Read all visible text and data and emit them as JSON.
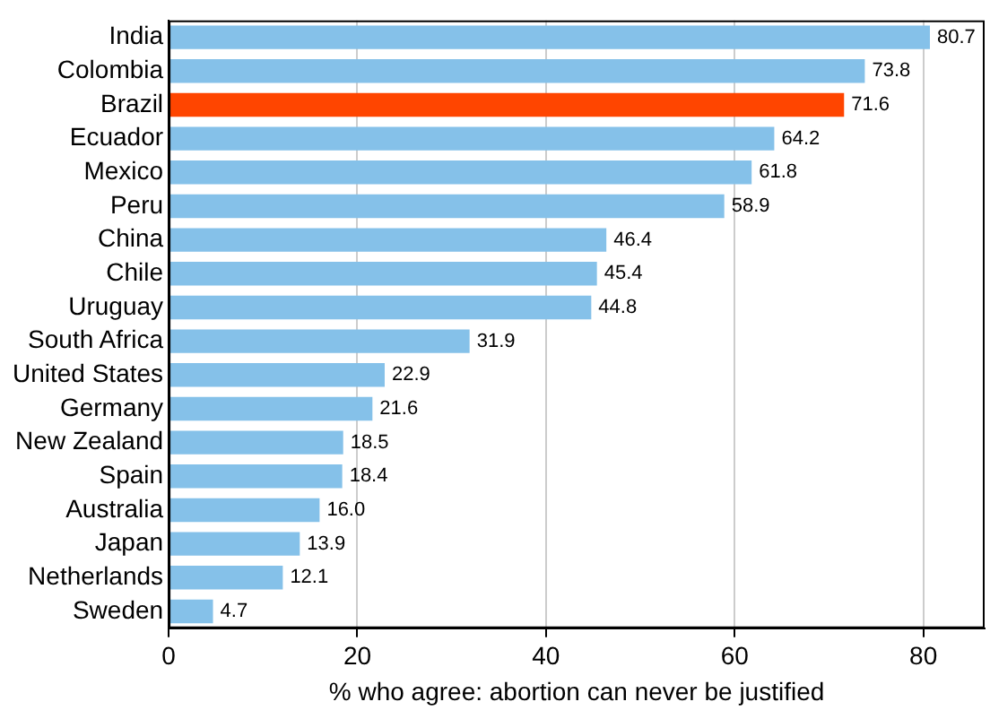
{
  "chart_data": {
    "type": "bar",
    "orientation": "horizontal",
    "xlabel": "% who agree: abortion can never be justified",
    "categories": [
      "India",
      "Colombia",
      "Brazil",
      "Ecuador",
      "Mexico",
      "Peru",
      "China",
      "Chile",
      "Uruguay",
      "South Africa",
      "United States",
      "Germany",
      "New Zealand",
      "Spain",
      "Australia",
      "Japan",
      "Netherlands",
      "Sweden"
    ],
    "values": [
      80.7,
      73.8,
      71.6,
      64.2,
      61.8,
      58.9,
      46.4,
      45.4,
      44.8,
      31.9,
      22.9,
      21.6,
      18.5,
      18.4,
      16.0,
      13.9,
      12.1,
      4.7
    ],
    "value_labels": [
      "80.7",
      "73.8",
      "71.6",
      "64.2",
      "61.8",
      "58.9",
      "46.4",
      "45.4",
      "44.8",
      "31.9",
      "22.9",
      "21.6",
      "18.5",
      "18.4",
      "16.0",
      "13.9",
      "12.1",
      "4.7"
    ],
    "colors": [
      "#85c1e9",
      "#85c1e9",
      "#ff4500",
      "#85c1e9",
      "#85c1e9",
      "#85c1e9",
      "#85c1e9",
      "#85c1e9",
      "#85c1e9",
      "#85c1e9",
      "#85c1e9",
      "#85c1e9",
      "#85c1e9",
      "#85c1e9",
      "#85c1e9",
      "#85c1e9",
      "#85c1e9",
      "#85c1e9"
    ],
    "xlim": [
      0,
      86.5
    ],
    "xticks": [
      0,
      20,
      40,
      60,
      80
    ],
    "grid": "x",
    "legend": false
  }
}
